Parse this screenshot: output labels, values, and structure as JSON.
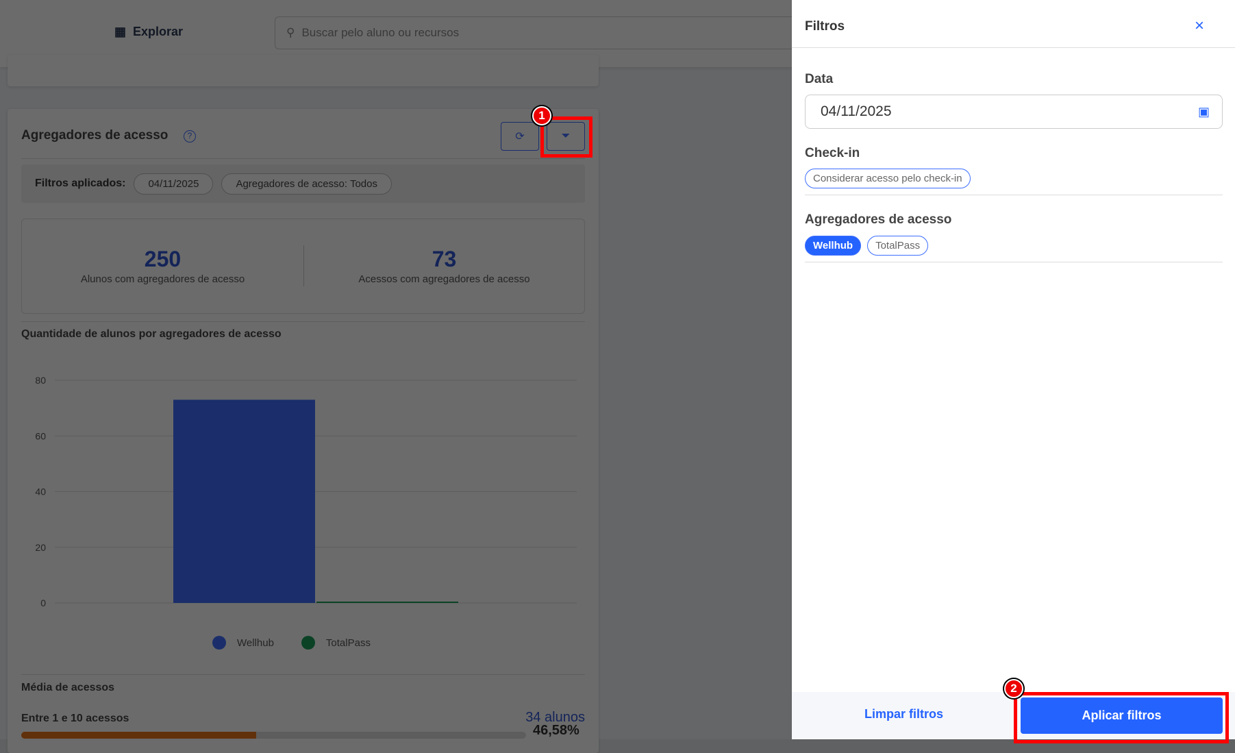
{
  "topbar": {
    "explore_label": "Explorar",
    "search_placeholder": "Buscar pelo aluno ou recursos"
  },
  "card": {
    "title": "Agregadores de acesso",
    "applied_filters_label": "Filtros aplicados:",
    "applied_filters": [
      "04/11/2025",
      "Agregadores de acesso: Todos"
    ],
    "stats": [
      {
        "value": "250",
        "label": "Alunos com agregadores de acesso"
      },
      {
        "value": "73",
        "label": "Acessos com agregadores de acesso"
      }
    ],
    "chart_title": "Quantidade de alunos por agregadores de acesso",
    "average_title": "Média de acessos",
    "range_label": "Entre 1 e 10 acessos",
    "range_count": "34 alunos",
    "range_percent": "46,58%",
    "range_progress": 46.58
  },
  "chart_data": {
    "type": "bar",
    "categories": [
      "Wellhub",
      "TotalPass"
    ],
    "series": [
      {
        "name": "Wellhub",
        "values": [
          73,
          null
        ],
        "color": "#416eff"
      },
      {
        "name": "TotalPass",
        "values": [
          null,
          0
        ],
        "color": "#1a9e5a"
      }
    ],
    "yticks": [
      0,
      20,
      40,
      60,
      80
    ],
    "ylim": [
      0,
      80
    ],
    "grid": true,
    "legend": "bottom"
  },
  "panel": {
    "title": "Filtros",
    "date_label": "Data",
    "date_value": "04/11/2025",
    "checkin_label": "Check-in",
    "checkin_chip": "Considerar acesso pelo check-in",
    "aggregators_label": "Agregadores de acesso",
    "aggregators": [
      {
        "label": "Wellhub",
        "selected": true
      },
      {
        "label": "TotalPass",
        "selected": false
      }
    ],
    "clear_label": "Limpar filtros",
    "apply_label": "Aplicar filtros"
  },
  "annotations": [
    "1",
    "2"
  ],
  "colors": {
    "accent": "#2563ff",
    "highlight": "#ff0000"
  }
}
